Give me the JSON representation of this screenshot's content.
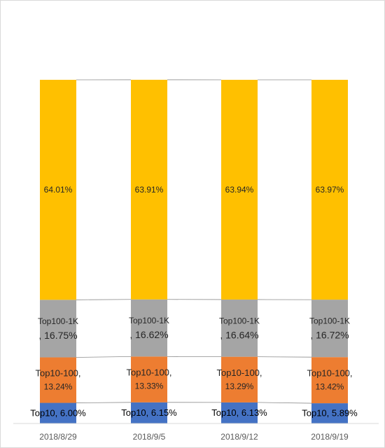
{
  "chart_data": {
    "type": "bar",
    "stacked": true,
    "percent_stacked": true,
    "categories": [
      "2018/8/29",
      "2018/9/5",
      "2018/9/12",
      "2018/9/19"
    ],
    "series": [
      {
        "name": "Top10",
        "color": "#4472C4",
        "values": [
          6.0,
          6.15,
          6.13,
          5.89
        ],
        "labels": [
          "Top10, 6.00%",
          "Top10, 6.15%",
          "Top10, 6.13%",
          "Top10, 5.89%"
        ]
      },
      {
        "name": "Top10-100",
        "color": "#ED7D31",
        "values": [
          13.24,
          13.33,
          13.29,
          13.42
        ],
        "labels": [
          [
            "Top10-100,",
            "13.24%"
          ],
          [
            "Top10-100,",
            "13.33%"
          ],
          [
            "Top10-100,",
            "13.29%"
          ],
          [
            "Top10-100,",
            "13.42%"
          ]
        ]
      },
      {
        "name": "Top100-1K",
        "color": "#A5A5A5",
        "values": [
          16.75,
          16.62,
          16.64,
          16.72
        ],
        "labels": [
          [
            "Top100-1K",
            ", 16.75%"
          ],
          [
            "Top100-1K",
            ", 16.62%"
          ],
          [
            "Top100-1K",
            ", 16.64%"
          ],
          [
            "Top100-1K",
            ", 16.72%"
          ]
        ]
      },
      {
        "color": "#FFC000",
        "values": [
          64.01,
          63.91,
          63.94,
          63.97
        ],
        "labels": [
          "64.01%",
          "63.91%",
          "63.94%",
          "63.97%"
        ]
      }
    ],
    "ylim": [
      0,
      100
    ],
    "grid": false,
    "legend": "none",
    "series_lines": true
  }
}
